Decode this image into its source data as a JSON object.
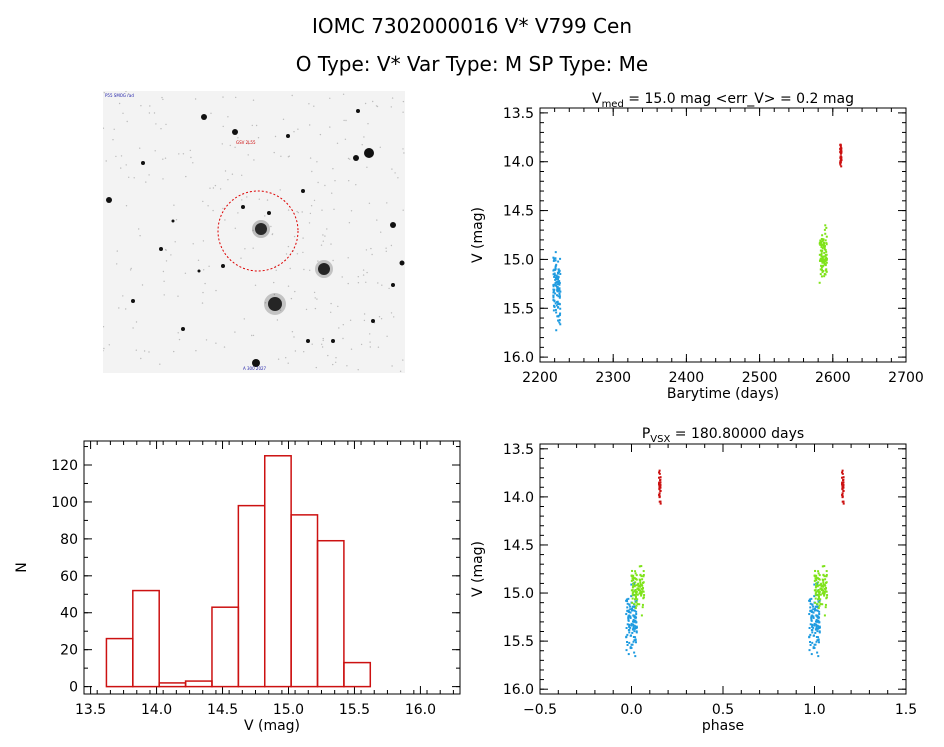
{
  "header": {
    "line1": "IOMC 7302000016     V* V799 Cen",
    "line2": "O Type: V*   Var Type: M   SP Type: Me"
  },
  "image_panel": {
    "label_top_left": "P55 SMOG rad",
    "label_target": "GSV 2L55",
    "label_bottom_center": "A 300 2027"
  },
  "colors": {
    "blue": "#1e9be0",
    "green": "#7fe31a",
    "red": "#cc1111",
    "hist": "#cc1111"
  },
  "chart_data": [
    {
      "id": "lightcurve",
      "type": "scatter",
      "title_prefix": "V",
      "title_sub": "med",
      "title_rest": " = 15.0 mag <err_V> = 0.2 mag",
      "xlabel": "Barytime (days)",
      "ylabel": "V (mag)",
      "xlim": [
        2200,
        2700
      ],
      "ylim": [
        16.05,
        13.45
      ],
      "xticks": [
        2200,
        2300,
        2400,
        2500,
        2600,
        2700
      ],
      "yticks": [
        "13.5",
        "14.0",
        "14.5",
        "15.0",
        "15.5",
        "16.0"
      ],
      "series": [
        {
          "color": "blue",
          "x_range": [
            2218,
            2228
          ],
          "y_range": [
            14.78,
            15.83
          ],
          "y_center": 15.3,
          "count": 110
        },
        {
          "color": "green",
          "x_range": [
            2582,
            2592
          ],
          "y_range": [
            14.45,
            15.28
          ],
          "y_center": 14.95,
          "count": 100
        },
        {
          "color": "red",
          "x_range": [
            2610,
            2612
          ],
          "y_range": [
            13.65,
            14.12
          ],
          "y_center": 13.9,
          "count": 40
        }
      ]
    },
    {
      "id": "histogram",
      "type": "bar",
      "xlabel": "V (mag)",
      "ylabel": "N",
      "xlim": [
        13.45,
        16.3
      ],
      "ylim": [
        -4,
        133
      ],
      "xticks": [
        "13.5",
        "14.0",
        "14.5",
        "15.0",
        "15.5",
        "16.0"
      ],
      "yticks": [
        0,
        20,
        40,
        60,
        80,
        100,
        120
      ],
      "bin_edges": [
        13.62,
        13.82,
        14.02,
        14.22,
        14.42,
        14.62,
        14.82,
        15.02,
        15.22,
        15.42,
        15.62,
        15.82,
        16.02
      ],
      "values": [
        26,
        52,
        2,
        3,
        43,
        98,
        125,
        93,
        79,
        13,
        0,
        0
      ]
    },
    {
      "id": "phased",
      "type": "scatter",
      "title_prefix": "P",
      "title_sub": "VSX",
      "title_rest": " = 180.80000 days",
      "xlabel": "phase",
      "ylabel": "V (mag)",
      "xlim": [
        -0.5,
        1.5
      ],
      "ylim": [
        16.05,
        13.45
      ],
      "xticks": [
        "−0.5",
        "0.0",
        "0.5",
        "1.0",
        "1.5"
      ],
      "xtick_values": [
        -0.5,
        0,
        0.5,
        1,
        1.5
      ],
      "yticks": [
        "13.5",
        "14.0",
        "14.5",
        "15.0",
        "15.5",
        "16.0"
      ],
      "series": [
        {
          "color": "blue",
          "x_range": [
            -0.03,
            0.03
          ],
          "y_range": [
            14.75,
            15.85
          ],
          "y_center": 15.3,
          "count": 110
        },
        {
          "color": "green",
          "x_range": [
            0.0,
            0.07
          ],
          "y_range": [
            14.45,
            15.25
          ],
          "y_center": 14.95,
          "count": 100
        },
        {
          "color": "red",
          "x_range": [
            0.15,
            0.16
          ],
          "y_range": [
            13.65,
            14.1
          ],
          "y_center": 13.9,
          "count": 40
        }
      ]
    }
  ]
}
